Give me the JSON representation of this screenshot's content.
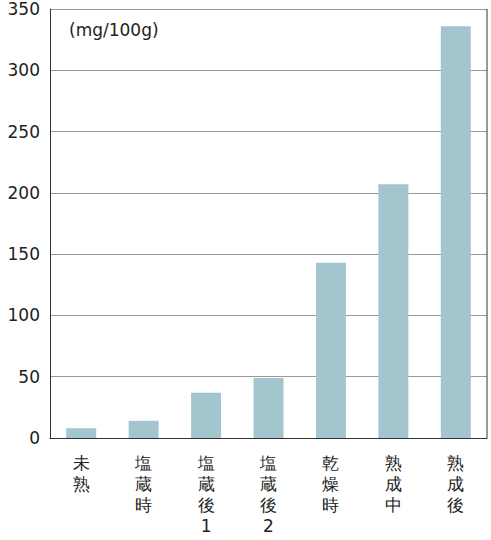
{
  "chart_data": {
    "type": "bar",
    "ylabel": "(mg/100g)",
    "categories": [
      "未熟",
      "塩蔵時",
      "塩蔵後1",
      "塩蔵後2",
      "乾燥時",
      "熟成中",
      "熟成後"
    ],
    "values": [
      8,
      14,
      37,
      49,
      143,
      207,
      336
    ],
    "color": "#a3c5cd",
    "ylim": [
      0,
      350
    ],
    "yticks": [
      0,
      50,
      100,
      150,
      200,
      250,
      300,
      350
    ],
    "grid": true
  }
}
